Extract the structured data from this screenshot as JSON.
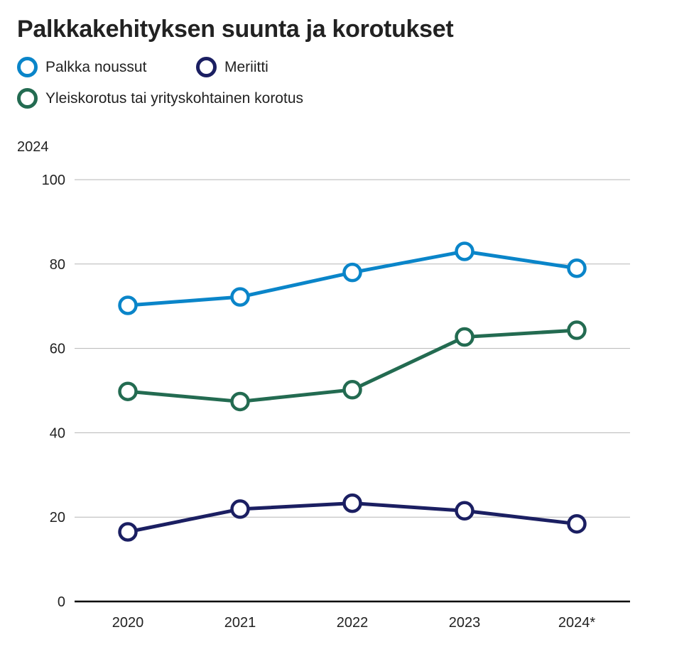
{
  "chart_data": {
    "type": "line",
    "title": "Palkkakehityksen suunta ja korotukset",
    "subtitle": "2024",
    "categories": [
      "2020",
      "2021",
      "2022",
      "2023",
      "2024*"
    ],
    "ylim": [
      0,
      100
    ],
    "yticks": [
      "0",
      "20",
      "40",
      "60",
      "80",
      "100"
    ],
    "grid": true,
    "legend_position": "top-left",
    "series": [
      {
        "name": "Palkka noussut",
        "color": "#0a85c9",
        "values": [
          70.2,
          72.2,
          78.0,
          83.0,
          79.0
        ]
      },
      {
        "name": "Meriitti",
        "color": "#1b1f62",
        "values": [
          16.5,
          21.9,
          23.3,
          21.5,
          18.4
        ]
      },
      {
        "name": "Yleiskorotus tai yrityskohtainen korotus",
        "color": "#236b51",
        "values": [
          49.8,
          47.4,
          50.2,
          62.7,
          64.3
        ]
      }
    ]
  }
}
